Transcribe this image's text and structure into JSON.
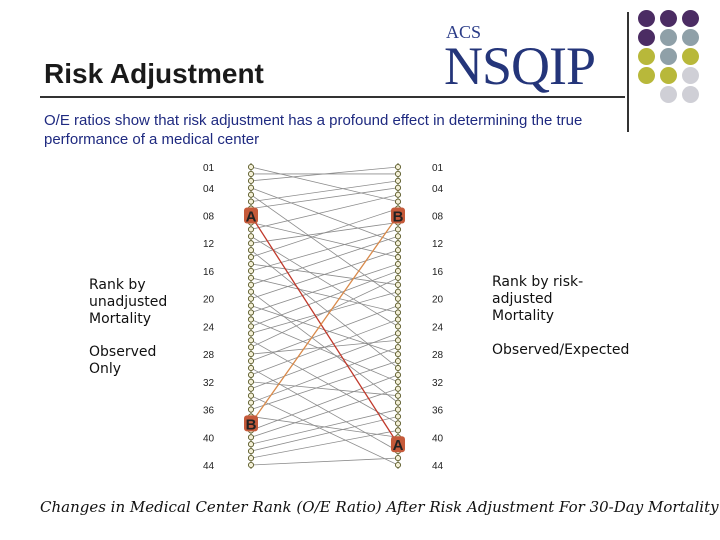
{
  "slide": {
    "title": "Risk Adjustment",
    "subtitle": "O/E ratios show that risk adjustment has a profound effect in determining the true performance of a medical center",
    "caption": "Changes in Medical Center Rank (O/E Ratio) After Risk Adjustment For 30-Day Mortality"
  },
  "logo": {
    "top_text": "ACS",
    "main_text": "NSQIP"
  },
  "labels": {
    "left_rank": "Rank by unadjusted Mortality",
    "left_method": "Observed Only",
    "right_rank": "Rank by risk-adjusted Mortality",
    "right_method": "Observed/Expected"
  },
  "colors": {
    "purple": "#4b2c63",
    "slate": "#8fa0a8",
    "olive": "#b8b83a",
    "light": "#cfcfd6",
    "marker_fill": "#c55a3a",
    "highlight_line": "#d98a4a"
  },
  "chart_data": {
    "type": "slope",
    "tick_labels": [
      "01",
      "04",
      "08",
      "12",
      "16",
      "20",
      "24",
      "28",
      "32",
      "36",
      "40",
      "44"
    ],
    "tick_ranks": [
      1,
      4,
      8,
      12,
      16,
      20,
      24,
      28,
      32,
      36,
      40,
      44
    ],
    "n_centers": 44,
    "highlighted": [
      {
        "name": "A",
        "unadjusted_rank": 8,
        "adjusted_rank": 41
      },
      {
        "name": "B",
        "unadjusted_rank": 38,
        "adjusted_rank": 8
      }
    ],
    "pairs": [
      [
        1,
        6
      ],
      [
        2,
        2
      ],
      [
        3,
        1
      ],
      [
        4,
        12
      ],
      [
        5,
        20
      ],
      [
        6,
        3
      ],
      [
        7,
        4
      ],
      [
        9,
        14
      ],
      [
        10,
        5
      ],
      [
        11,
        24
      ],
      [
        12,
        9
      ],
      [
        13,
        30
      ],
      [
        14,
        7
      ],
      [
        15,
        18
      ],
      [
        16,
        10
      ],
      [
        17,
        22
      ],
      [
        18,
        11
      ],
      [
        19,
        35
      ],
      [
        20,
        13
      ],
      [
        21,
        28
      ],
      [
        22,
        15
      ],
      [
        23,
        32
      ],
      [
        24,
        16
      ],
      [
        25,
        19
      ],
      [
        26,
        38
      ],
      [
        27,
        17
      ],
      [
        28,
        26
      ],
      [
        29,
        21
      ],
      [
        30,
        42
      ],
      [
        31,
        23
      ],
      [
        32,
        34
      ],
      [
        33,
        25
      ],
      [
        34,
        44
      ],
      [
        35,
        27
      ],
      [
        36,
        29
      ],
      [
        37,
        40
      ],
      [
        39,
        31
      ],
      [
        40,
        33
      ],
      [
        41,
        36
      ],
      [
        42,
        37
      ],
      [
        43,
        39
      ],
      [
        44,
        43
      ]
    ]
  }
}
